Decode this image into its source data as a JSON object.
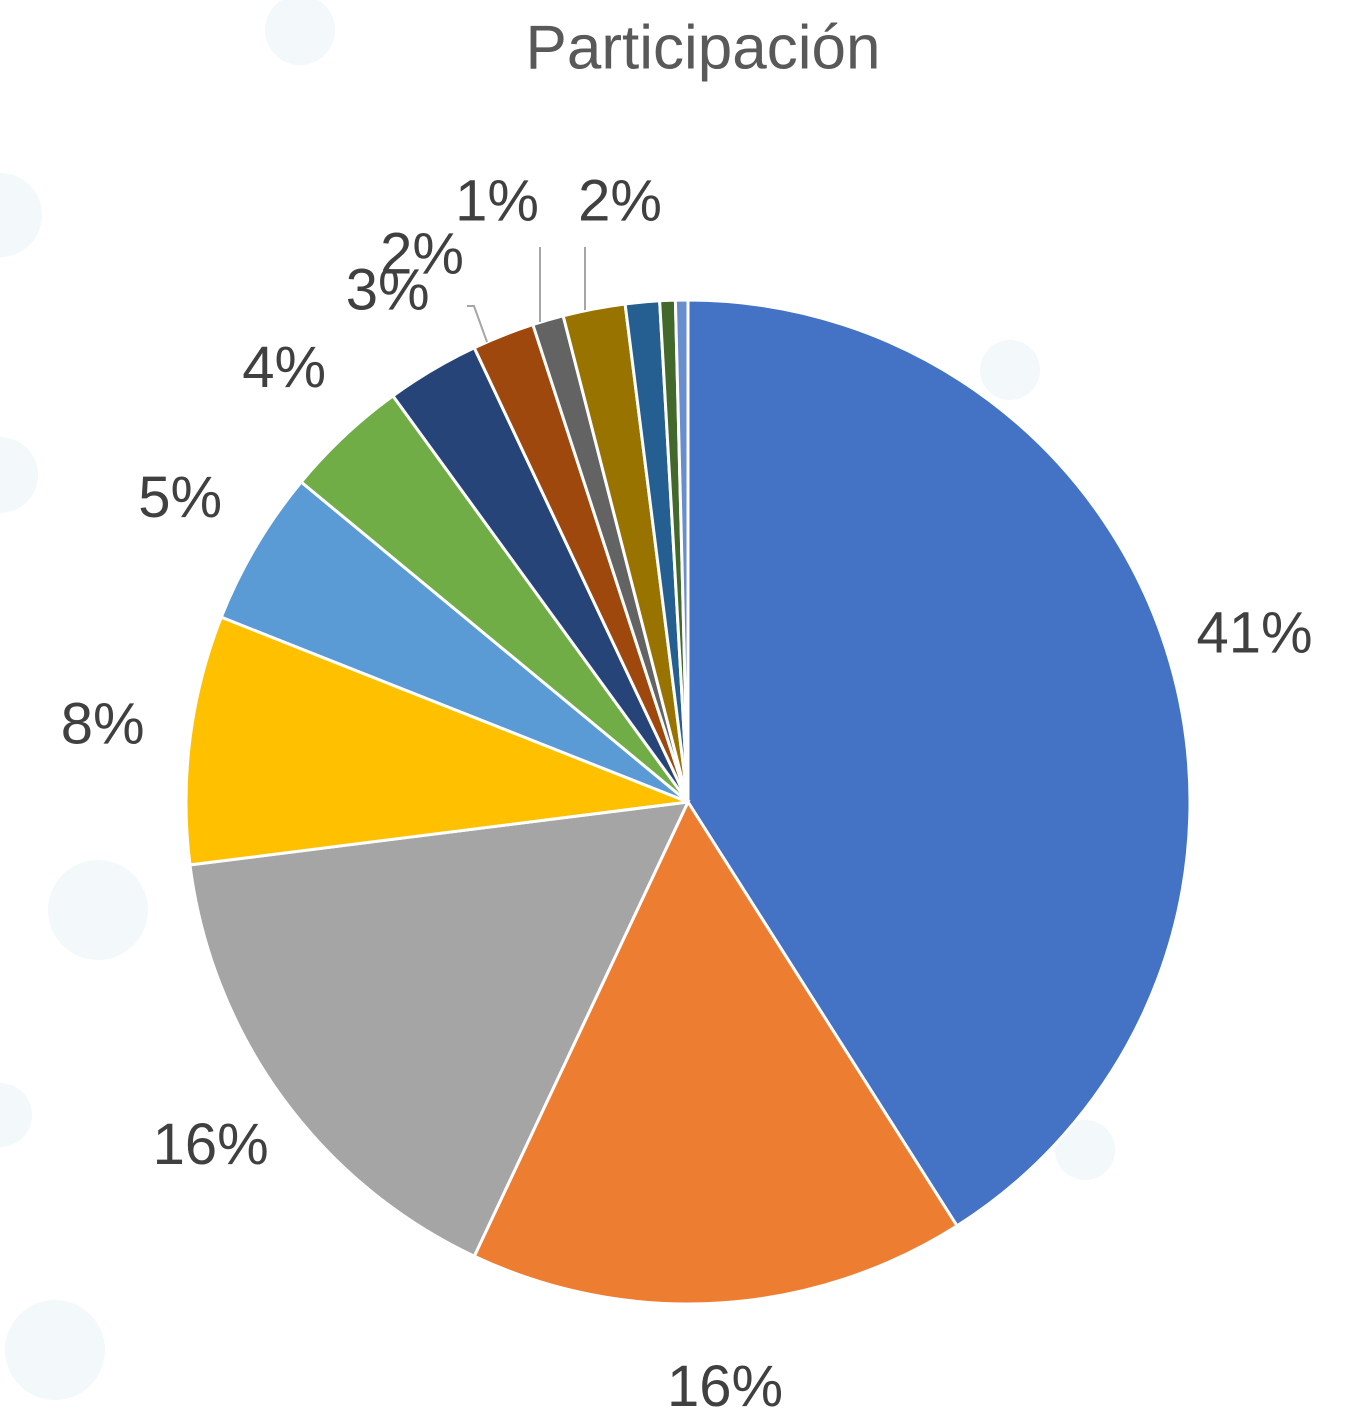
{
  "chart_data": {
    "type": "pie",
    "title": "Participación",
    "values": [
      41,
      16,
      16,
      8,
      5,
      4,
      3,
      2,
      1,
      2,
      1.1,
      0.5,
      0.4
    ],
    "value_labels": [
      "41%",
      "16%",
      "16%",
      "8%",
      "5%",
      "4%",
      "3%",
      "2%",
      "1%",
      "2%",
      null,
      null,
      null
    ],
    "colors": [
      "#4472c4",
      "#ed7d31",
      "#a5a5a5",
      "#ffc000",
      "#5b9bd5",
      "#70ad47",
      "#264478",
      "#9e480e",
      "#636363",
      "#997300",
      "#255e91",
      "#43682b",
      "#698ed0"
    ]
  }
}
